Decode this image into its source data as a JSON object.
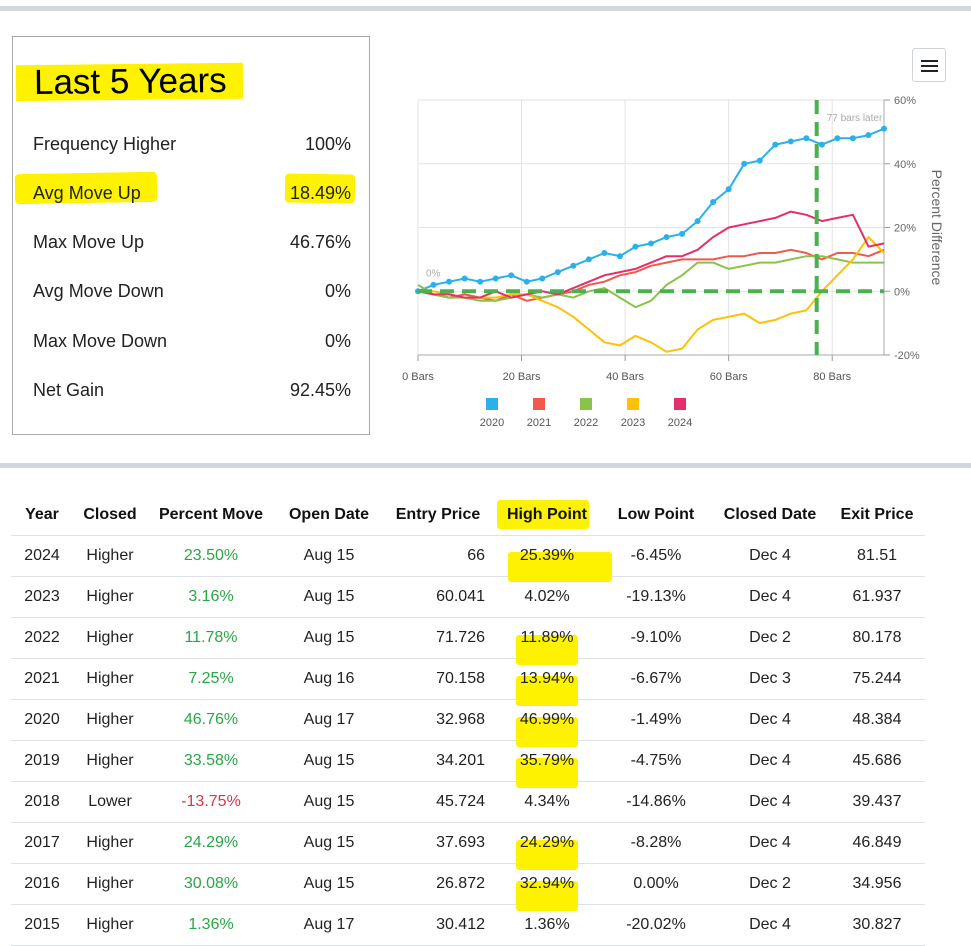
{
  "stats": {
    "title": "Last 5 Years",
    "rows": [
      {
        "label": "Frequency Higher",
        "value": "100%"
      },
      {
        "label": "Avg Move Up",
        "value": "18.49%"
      },
      {
        "label": "Max Move Up",
        "value": "46.76%"
      },
      {
        "label": "Avg Move Down",
        "value": "0%"
      },
      {
        "label": "Max Move Down",
        "value": "0%"
      },
      {
        "label": "Net Gain",
        "value": "92.45%"
      }
    ]
  },
  "chart_data": {
    "type": "line",
    "xlabel": "",
    "ylabel": "Percent Difference",
    "xlim": [
      0,
      90
    ],
    "ylim": [
      -20,
      60
    ],
    "xticks": [
      "0 Bars",
      "20 Bars",
      "40 Bars",
      "60 Bars",
      "80 Bars"
    ],
    "xtick_values": [
      0,
      20,
      40,
      60,
      80
    ],
    "yticks": [
      "60%",
      "40%",
      "20%",
      "0%",
      "-20%"
    ],
    "ytick_values": [
      60,
      40,
      20,
      0,
      -20
    ],
    "annotations": [
      {
        "text": "77 bars later",
        "x": 77
      },
      {
        "text": "0%",
        "x": 0,
        "y": 0
      }
    ],
    "reference_lines": {
      "vertical_x": 77,
      "horizontal_y": 0
    },
    "grid": true,
    "legend": "bottom",
    "series": [
      {
        "name": "2020",
        "color": "#2ab0ea",
        "x": [
          0,
          3,
          6,
          9,
          12,
          15,
          18,
          21,
          24,
          27,
          30,
          33,
          36,
          39,
          42,
          45,
          48,
          51,
          54,
          57,
          60,
          63,
          66,
          69,
          72,
          75,
          78,
          81,
          84,
          87,
          90
        ],
        "y": [
          0,
          2,
          3,
          4,
          3,
          4,
          5,
          3,
          4,
          6,
          8,
          10,
          12,
          11,
          14,
          15,
          17,
          18,
          22,
          28,
          32,
          40,
          41,
          46,
          47,
          48,
          46,
          48,
          48,
          49,
          51
        ]
      },
      {
        "name": "2021",
        "color": "#ef5a4c",
        "x": [
          0,
          3,
          6,
          9,
          12,
          15,
          18,
          21,
          24,
          27,
          30,
          33,
          36,
          39,
          42,
          45,
          48,
          51,
          54,
          57,
          60,
          63,
          66,
          69,
          72,
          75,
          78,
          81,
          84,
          87,
          90
        ],
        "y": [
          0,
          -1,
          -2,
          -1,
          -2,
          -3,
          -1,
          -3,
          -2,
          -1,
          0,
          2,
          3,
          5,
          6,
          8,
          9,
          10,
          10,
          10,
          11,
          11,
          12,
          12,
          13,
          12,
          10,
          12,
          12,
          11,
          13
        ]
      },
      {
        "name": "2022",
        "color": "#8bc34a",
        "x": [
          0,
          3,
          6,
          9,
          12,
          15,
          18,
          21,
          24,
          27,
          30,
          33,
          36,
          39,
          42,
          45,
          48,
          51,
          54,
          57,
          60,
          63,
          66,
          69,
          72,
          75,
          78,
          81,
          84,
          87,
          90
        ],
        "y": [
          2,
          -1,
          -2,
          -2,
          -3,
          -3,
          -2,
          -1,
          -2,
          -1,
          -2,
          0,
          1,
          -2,
          -5,
          -3,
          2,
          5,
          9,
          9,
          7,
          8,
          9,
          9,
          10,
          11,
          11,
          10,
          9,
          9,
          9
        ]
      },
      {
        "name": "2023",
        "color": "#ffc107",
        "x": [
          0,
          3,
          6,
          9,
          12,
          15,
          18,
          21,
          24,
          27,
          30,
          33,
          36,
          39,
          42,
          45,
          48,
          51,
          54,
          57,
          60,
          63,
          66,
          69,
          72,
          75,
          78,
          81,
          84,
          87,
          90
        ],
        "y": [
          0,
          0,
          -1,
          -2,
          -2,
          -2,
          -1,
          -1,
          -3,
          -5,
          -8,
          -12,
          -16,
          -17,
          -14,
          -16,
          -19,
          -18,
          -12,
          -9,
          -8,
          -7,
          -10,
          -9,
          -7,
          -6,
          0,
          5,
          10,
          17,
          12
        ]
      },
      {
        "name": "2024",
        "color": "#e3306d",
        "x": [
          0,
          3,
          6,
          9,
          12,
          15,
          18,
          21,
          24,
          27,
          30,
          33,
          36,
          39,
          42,
          45,
          48,
          51,
          54,
          57,
          60,
          63,
          66,
          69,
          72,
          75,
          78,
          81,
          84,
          87,
          90
        ],
        "y": [
          0,
          -1,
          -1,
          -2,
          -2,
          0,
          -2,
          -1,
          0,
          -1,
          1,
          3,
          5,
          6,
          7,
          9,
          11,
          11,
          13,
          17,
          20,
          21,
          22,
          23,
          25,
          24,
          22,
          23,
          24,
          14,
          15
        ]
      }
    ]
  },
  "table": {
    "headers": [
      "Year",
      "Closed",
      "Percent Move",
      "Open Date",
      "Entry Price",
      "High Point",
      "Low Point",
      "Closed Date",
      "Exit Price"
    ],
    "rows": [
      {
        "year": "2024",
        "closed": "Higher",
        "move": "23.50%",
        "open": "Aug 15",
        "entry": "66",
        "high": "25.39%",
        "low": "-6.45%",
        "closed_date": "Dec 4",
        "exit": "81.51"
      },
      {
        "year": "2023",
        "closed": "Higher",
        "move": "3.16%",
        "open": "Aug 15",
        "entry": "60.041",
        "high": "4.02%",
        "low": "-19.13%",
        "closed_date": "Dec 4",
        "exit": "61.937"
      },
      {
        "year": "2022",
        "closed": "Higher",
        "move": "11.78%",
        "open": "Aug 15",
        "entry": "71.726",
        "high": "11.89%",
        "low": "-9.10%",
        "closed_date": "Dec 2",
        "exit": "80.178"
      },
      {
        "year": "2021",
        "closed": "Higher",
        "move": "7.25%",
        "open": "Aug 16",
        "entry": "70.158",
        "high": "13.94%",
        "low": "-6.67%",
        "closed_date": "Dec 3",
        "exit": "75.244"
      },
      {
        "year": "2020",
        "closed": "Higher",
        "move": "46.76%",
        "open": "Aug 17",
        "entry": "32.968",
        "high": "46.99%",
        "low": "-1.49%",
        "closed_date": "Dec 4",
        "exit": "48.384"
      },
      {
        "year": "2019",
        "closed": "Higher",
        "move": "33.58%",
        "open": "Aug 15",
        "entry": "34.201",
        "high": "35.79%",
        "low": "-4.75%",
        "closed_date": "Dec 4",
        "exit": "45.686"
      },
      {
        "year": "2018",
        "closed": "Lower",
        "move": "-13.75%",
        "open": "Aug 15",
        "entry": "45.724",
        "high": "4.34%",
        "low": "-14.86%",
        "closed_date": "Dec 4",
        "exit": "39.437"
      },
      {
        "year": "2017",
        "closed": "Higher",
        "move": "24.29%",
        "open": "Aug 15",
        "entry": "37.693",
        "high": "24.29%",
        "low": "-8.28%",
        "closed_date": "Dec 4",
        "exit": "46.849"
      },
      {
        "year": "2016",
        "closed": "Higher",
        "move": "30.08%",
        "open": "Aug 15",
        "entry": "26.872",
        "high": "32.94%",
        "low": "0.00%",
        "closed_date": "Dec 2",
        "exit": "34.956"
      },
      {
        "year": "2015",
        "closed": "Higher",
        "move": "1.36%",
        "open": "Aug 17",
        "entry": "30.412",
        "high": "1.36%",
        "low": "-20.02%",
        "closed_date": "Dec 4",
        "exit": "30.827"
      }
    ],
    "highlighted_high_rows": [
      0,
      2,
      3,
      4,
      5,
      7,
      8
    ]
  },
  "colors": {
    "highlight": "#fff200",
    "positive": "#28a745",
    "negative": "#dc3545"
  },
  "icons": {
    "menu": "hamburger-menu-icon"
  }
}
